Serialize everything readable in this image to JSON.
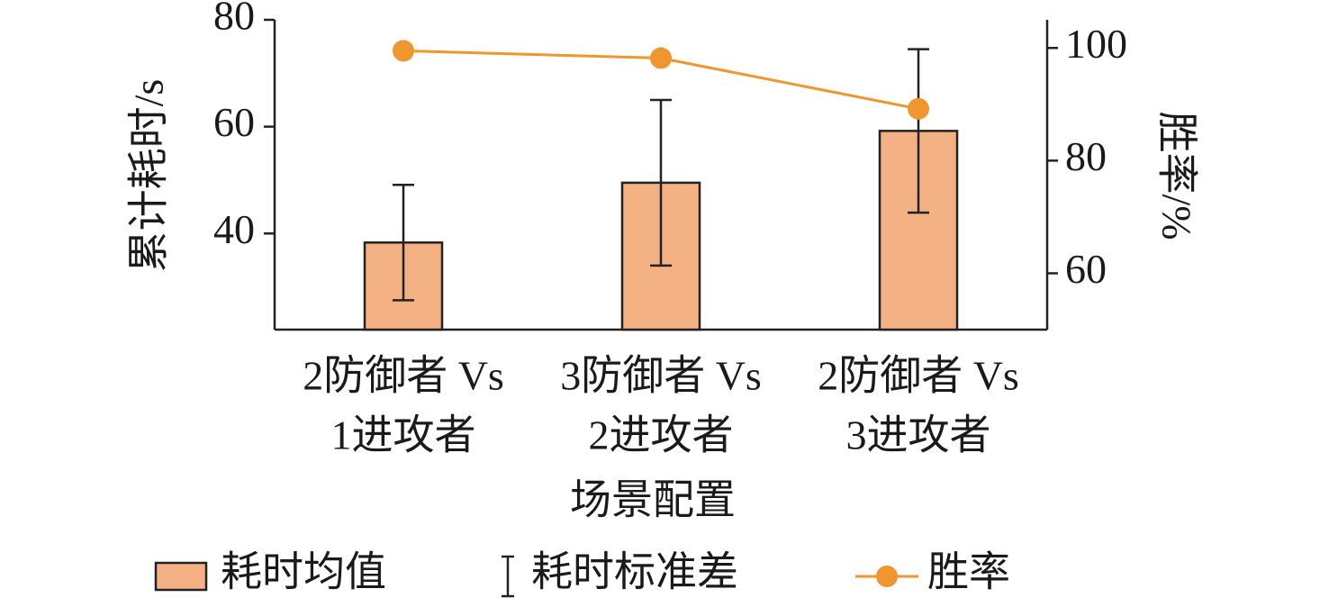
{
  "chart_data": {
    "type": "bar",
    "categories": [
      [
        "2防御者 Vs",
        "1进攻者"
      ],
      [
        "3防御者 Vs",
        "2进攻者"
      ],
      [
        "2防御者 Vs",
        "3进攻者"
      ]
    ],
    "xlabel": "场景配置",
    "ylabel": "累计耗时/s",
    "y2label": "胜率/%",
    "ylim": [
      22,
      80
    ],
    "yticks": [
      40,
      60,
      80
    ],
    "y2lim": [
      50,
      105
    ],
    "y2ticks": [
      60,
      80,
      100
    ],
    "series": [
      {
        "name": "耗时均值",
        "type": "bar",
        "color": "#f4b183",
        "values": [
          38.3,
          49.5,
          59.2
        ],
        "error_name": "耗时标准差",
        "errors": [
          10.8,
          15.5,
          15.3
        ]
      },
      {
        "name": "胜率",
        "type": "line",
        "axis": "y2",
        "color": "#f0962e",
        "values": [
          99.5,
          98.2,
          89.2
        ]
      }
    ]
  }
}
